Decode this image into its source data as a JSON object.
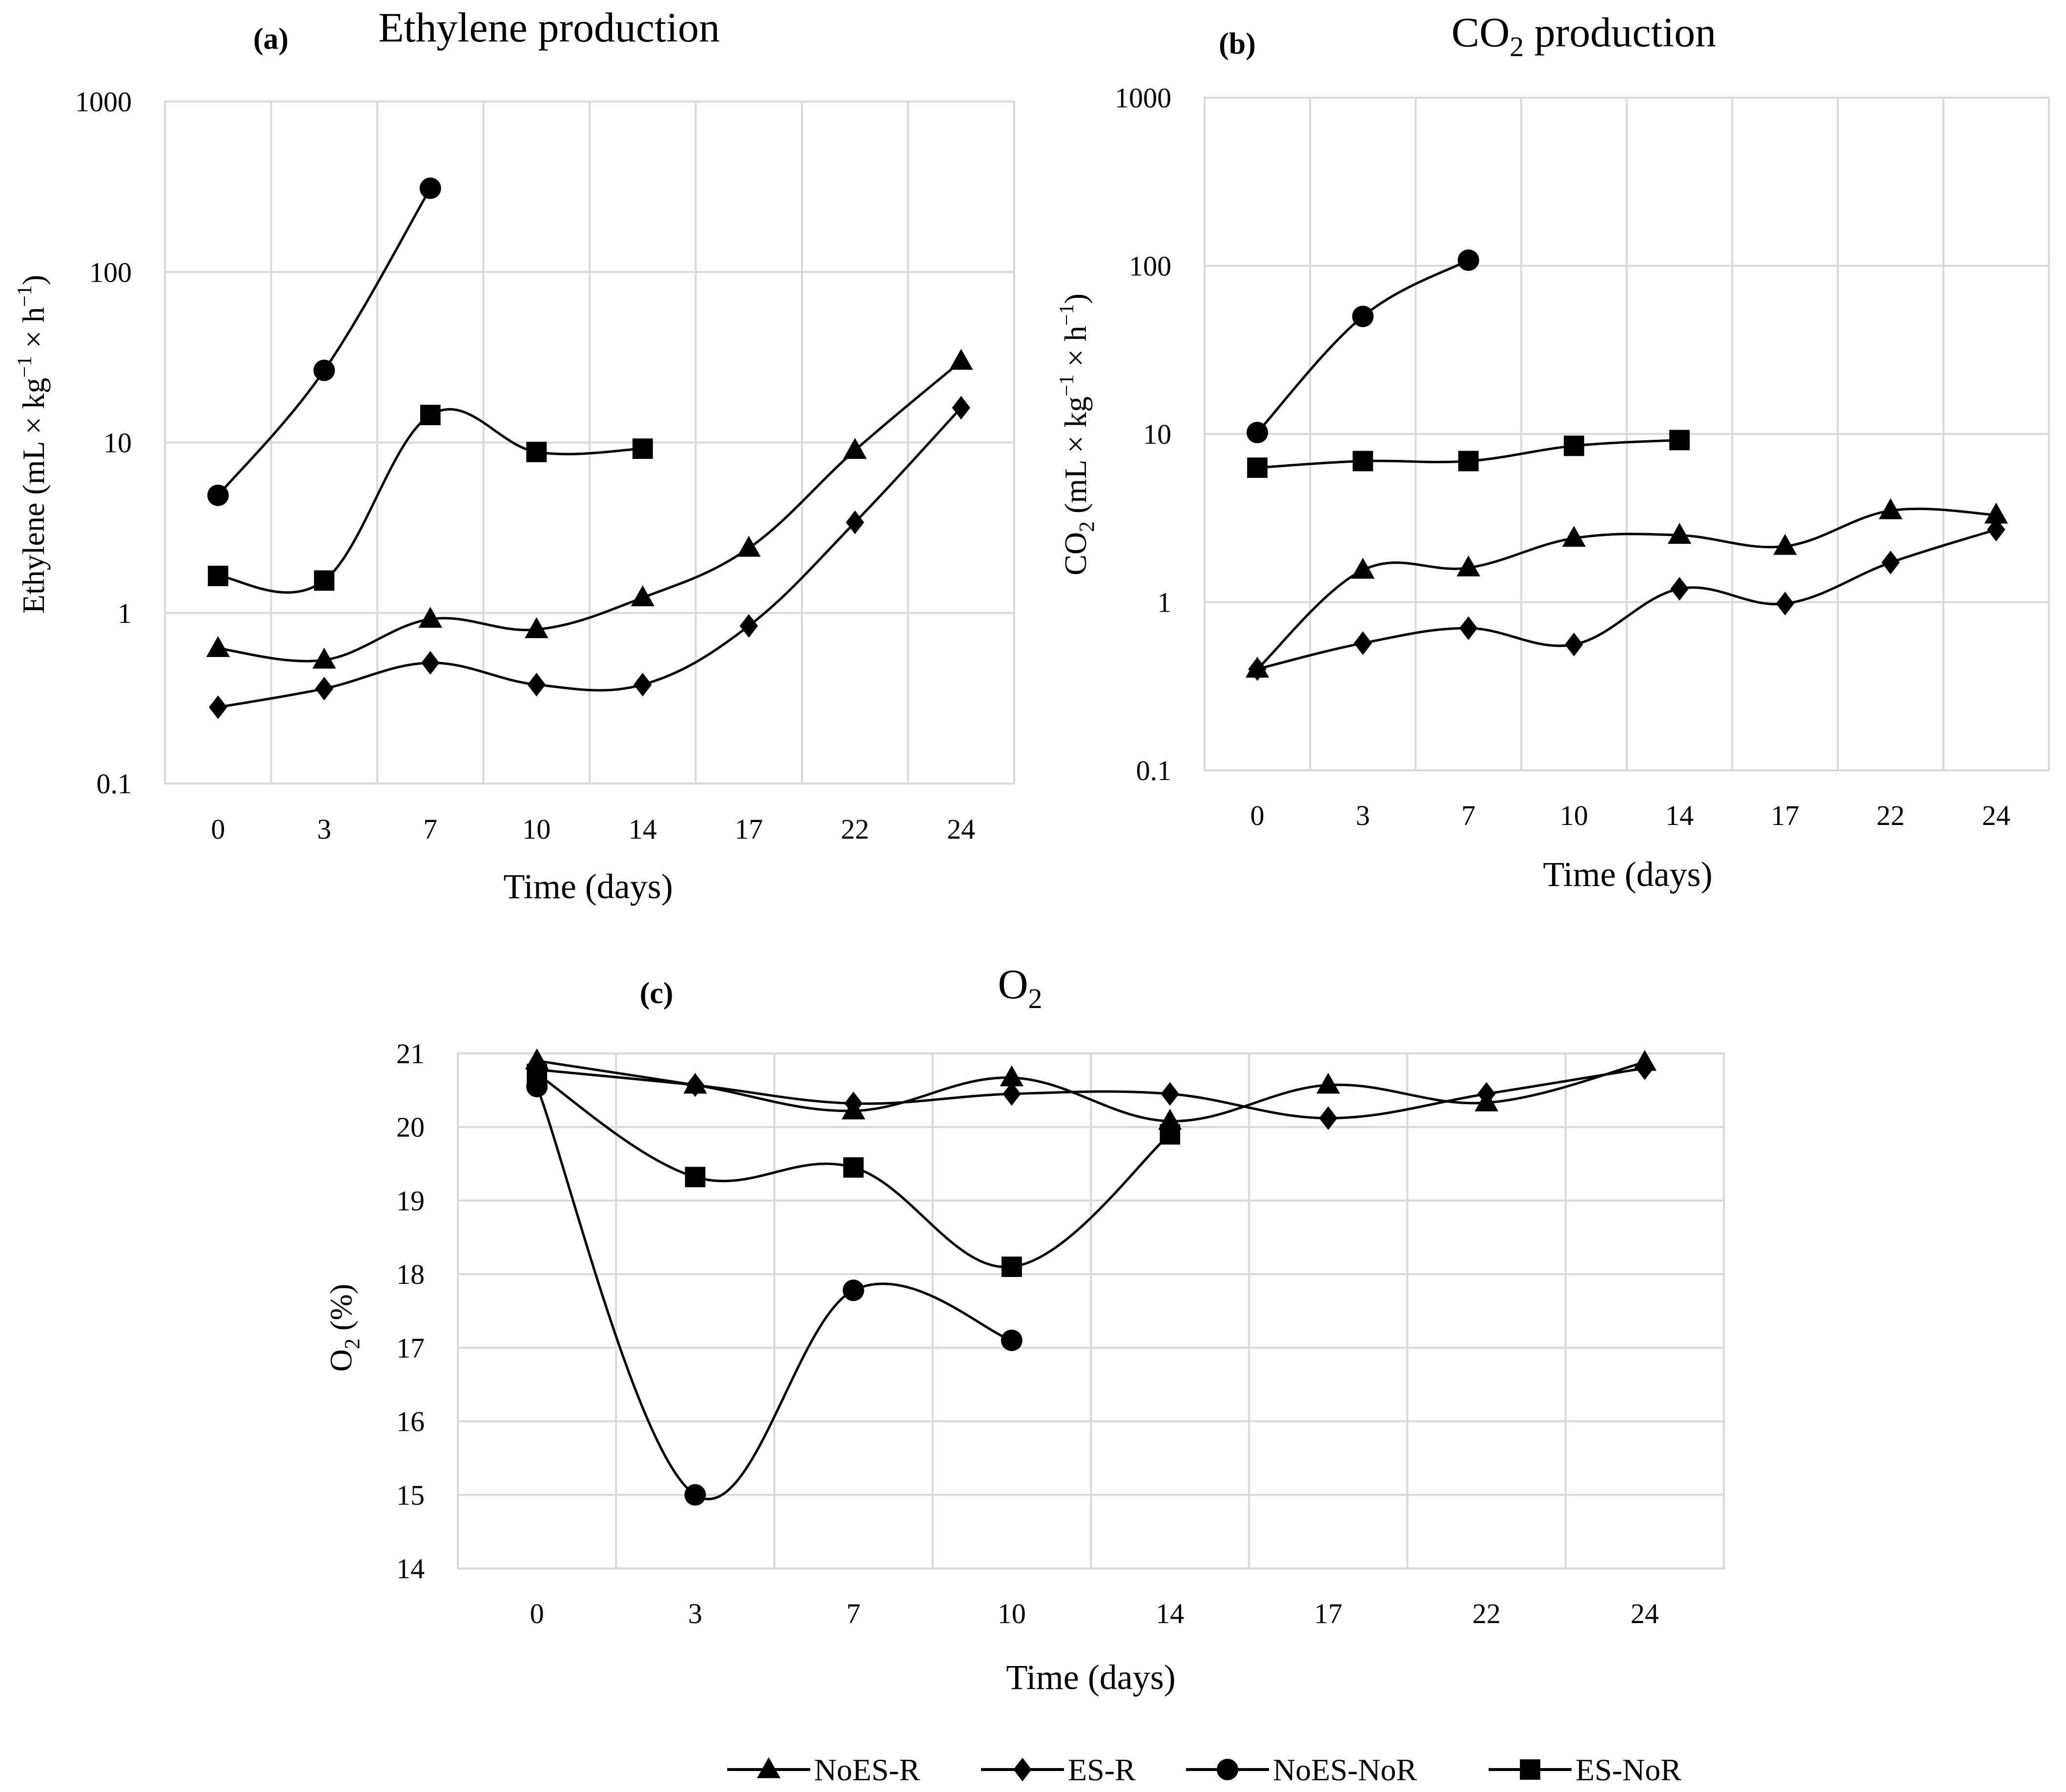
{
  "colors": {
    "line": "#000000",
    "grid": "#d9d9d9",
    "background": "#ffffff"
  },
  "legend": {
    "position": "bottom",
    "entries": [
      {
        "name": "NoES-R",
        "marker": "triangle"
      },
      {
        "name": "ES-R",
        "marker": "diamond"
      },
      {
        "name": "NoES-NoR",
        "marker": "circle"
      },
      {
        "name": "ES-NoR",
        "marker": "square"
      }
    ]
  },
  "chart_data": [
    {
      "id": "a",
      "panel_label": "(a)",
      "type": "line",
      "title": "Ethylene production",
      "xlabel": "Time (days)",
      "ylabel_main": "Ethylene  (mL × kg",
      "ylabel_sup1": "−1",
      "ylabel_mid": " × h",
      "ylabel_sup2": "−1",
      "ylabel_end": ")",
      "yscale": "log",
      "ylim": [
        0.1,
        1000
      ],
      "yticks": [
        0.1,
        1,
        10,
        100,
        1000
      ],
      "ytick_labels": [
        "0.1",
        "1",
        "10",
        "100",
        "1000"
      ],
      "categories": [
        "0",
        "3",
        "7",
        "10",
        "14",
        "17",
        "22",
        "24"
      ],
      "series": [
        {
          "name": "NoES-R",
          "marker": "triangle",
          "values": [
            0.62,
            0.53,
            0.92,
            0.8,
            1.23,
            2.4,
            9.0,
            30.0
          ]
        },
        {
          "name": "ES-R",
          "marker": "diamond",
          "values": [
            0.28,
            0.36,
            0.51,
            0.38,
            0.38,
            0.84,
            3.4,
            16.0
          ]
        },
        {
          "name": "NoES-NoR",
          "marker": "circle",
          "values": [
            4.9,
            26.5,
            310.0,
            null,
            null,
            null,
            null,
            null
          ]
        },
        {
          "name": "ES-NoR",
          "marker": "square",
          "values": [
            1.65,
            1.55,
            14.5,
            8.8,
            9.2,
            null,
            null,
            null
          ]
        }
      ]
    },
    {
      "id": "b",
      "panel_label": "(b)",
      "type": "line",
      "title": "CO",
      "title_sub": "2",
      "title_end": " production",
      "xlabel": "Time (days)",
      "ylabel_main": "CO",
      "ylabel_sub": "2",
      "ylabel_rest": "  (mL × kg",
      "ylabel_sup1": "−1",
      "ylabel_mid": " × h",
      "ylabel_sup2": "−1",
      "ylabel_end": ")",
      "yscale": "log",
      "ylim": [
        0.1,
        1000
      ],
      "yticks": [
        0.1,
        1,
        10,
        100,
        1000
      ],
      "ytick_labels": [
        "0.1",
        "1",
        "10",
        "100",
        "1000"
      ],
      "categories": [
        "0",
        "3",
        "7",
        "10",
        "14",
        "17",
        "22",
        "24"
      ],
      "series": [
        {
          "name": "NoES-R",
          "marker": "triangle",
          "values": [
            0.4,
            1.55,
            1.6,
            2.4,
            2.5,
            2.15,
            3.5,
            3.3
          ]
        },
        {
          "name": "ES-R",
          "marker": "diamond",
          "values": [
            0.4,
            0.57,
            0.7,
            0.56,
            1.2,
            0.98,
            1.72,
            2.7
          ]
        },
        {
          "name": "NoES-NoR",
          "marker": "circle",
          "values": [
            10.2,
            50.0,
            108.0,
            null,
            null,
            null,
            null,
            null
          ]
        },
        {
          "name": "ES-NoR",
          "marker": "square",
          "values": [
            6.3,
            6.9,
            6.9,
            8.5,
            9.2,
            null,
            null,
            null
          ]
        }
      ]
    },
    {
      "id": "c",
      "panel_label": "(c)",
      "type": "line",
      "title": "O",
      "title_sub": "2",
      "xlabel": "Time (days)",
      "ylabel_main": "O",
      "ylabel_sub": "2",
      "ylabel_rest": "  (%)",
      "yscale": "linear",
      "ylim": [
        14,
        21
      ],
      "yticks": [
        14,
        15,
        16,
        17,
        18,
        19,
        20,
        21
      ],
      "ytick_labels": [
        "14",
        "15",
        "16",
        "17",
        "18",
        "19",
        "20",
        "21"
      ],
      "categories": [
        "0",
        "3",
        "7",
        "10",
        "14",
        "17",
        "22",
        "24"
      ],
      "series": [
        {
          "name": "NoES-R",
          "marker": "triangle",
          "values": [
            20.9,
            20.57,
            20.22,
            20.67,
            20.08,
            20.57,
            20.33,
            20.88
          ]
        },
        {
          "name": "ES-R",
          "marker": "diamond",
          "values": [
            20.78,
            20.57,
            20.32,
            20.45,
            20.45,
            20.12,
            20.45,
            20.8
          ]
        },
        {
          "name": "NoES-NoR",
          "marker": "circle",
          "values": [
            20.55,
            15.0,
            17.78,
            17.1,
            null,
            null,
            null,
            null
          ]
        },
        {
          "name": "ES-NoR",
          "marker": "square",
          "values": [
            20.72,
            19.32,
            19.45,
            18.1,
            19.9,
            null,
            null,
            null
          ]
        }
      ]
    }
  ]
}
